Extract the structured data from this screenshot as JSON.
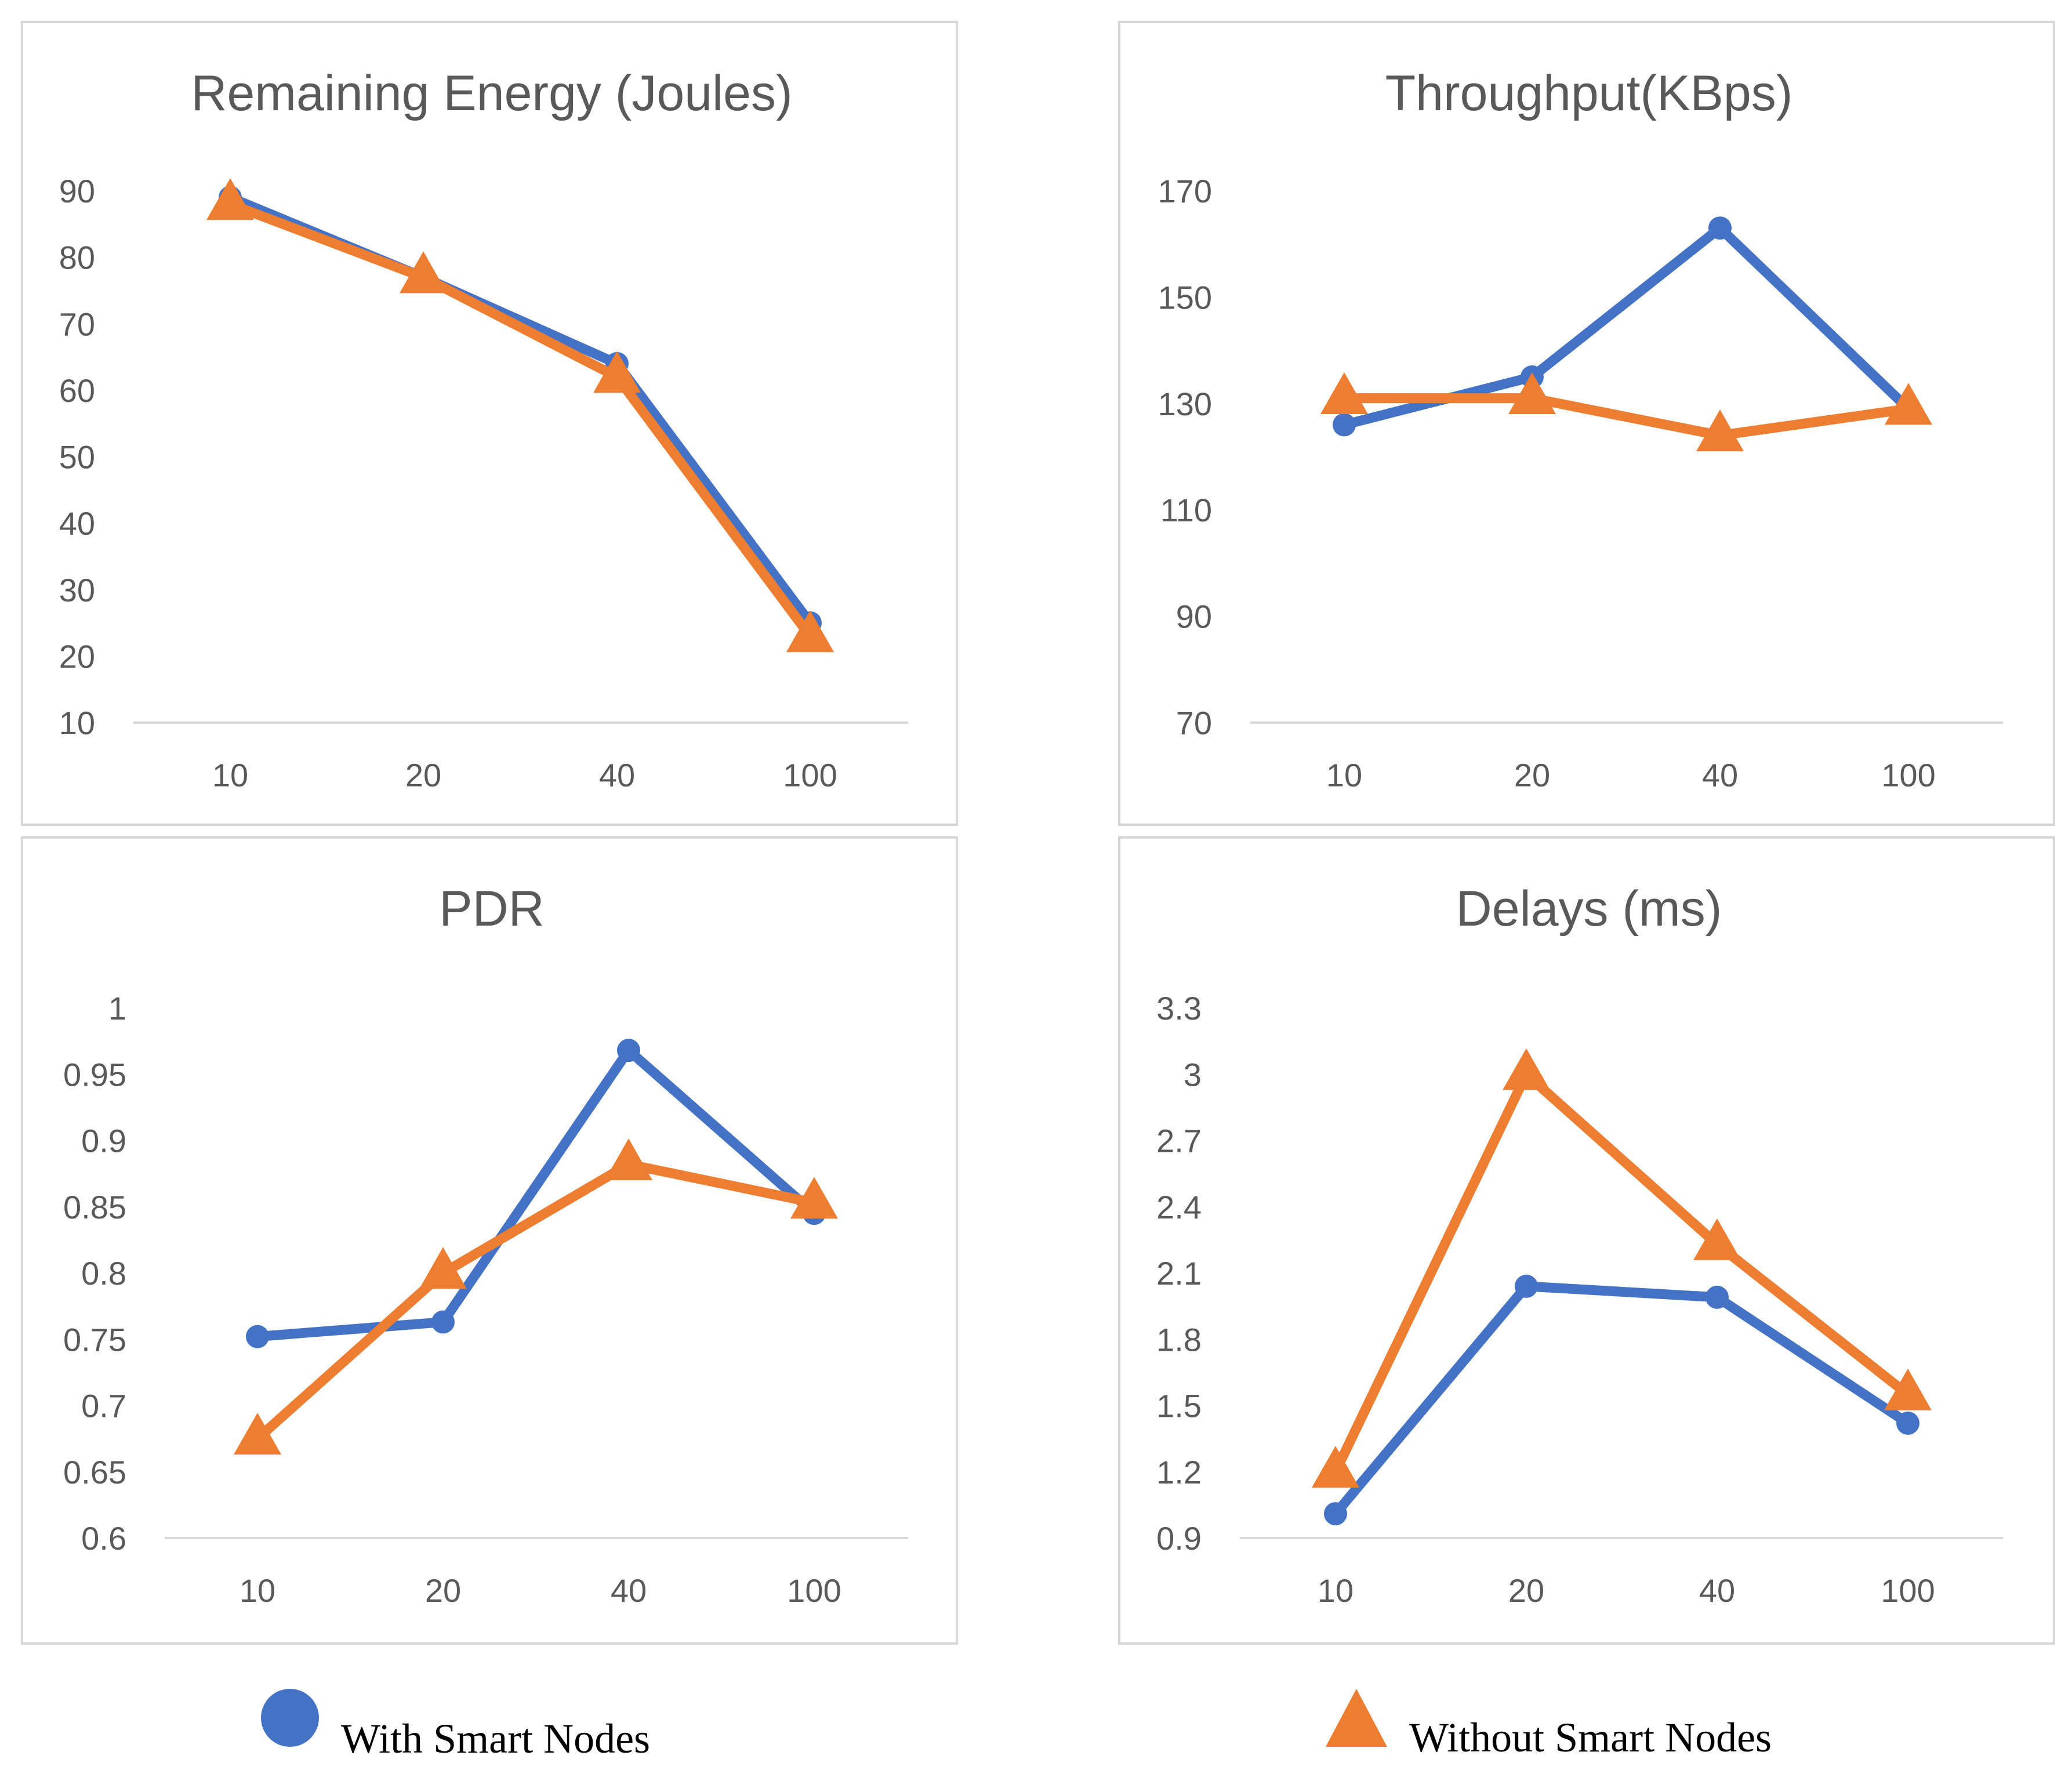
{
  "colors": {
    "with": "#4472C4",
    "without": "#ED7D31",
    "axis": "#d9d9d9",
    "text": "#595959"
  },
  "legend": {
    "with_label": "With Smart Nodes",
    "with_marker": "circle",
    "without_label": "Without Smart Nodes",
    "without_marker": "triangle"
  },
  "chart_data": [
    {
      "type": "line",
      "title": "Remaining Energy (Joules)",
      "categories": [
        "10",
        "20",
        "40",
        "100"
      ],
      "ylim": [
        10,
        90
      ],
      "yticks": [
        "10",
        "20",
        "30",
        "40",
        "50",
        "60",
        "70",
        "80",
        "90"
      ],
      "series": [
        {
          "name": "With Smart Nodes",
          "marker": "circle",
          "values": [
            89,
            77,
            64,
            25
          ]
        },
        {
          "name": "Without Smart Nodes",
          "marker": "triangle",
          "values": [
            88,
            77,
            62,
            23
          ]
        }
      ],
      "grid": false
    },
    {
      "type": "line",
      "title": "Throughput(KBps)",
      "categories": [
        "10",
        "20",
        "40",
        "100"
      ],
      "ylim": [
        70,
        170
      ],
      "yticks": [
        "70",
        "90",
        "110",
        "130",
        "150",
        "170"
      ],
      "series": [
        {
          "name": "With Smart Nodes",
          "marker": "circle",
          "values": [
            126,
            135,
            163,
            129
          ]
        },
        {
          "name": "Without Smart Nodes",
          "marker": "triangle",
          "values": [
            131,
            131,
            124,
            129
          ]
        }
      ],
      "grid": false
    },
    {
      "type": "line",
      "title": "PDR",
      "categories": [
        "10",
        "20",
        "40",
        "100"
      ],
      "ylim": [
        0.6,
        1
      ],
      "yticks": [
        "0.6",
        "0.65",
        "0.7",
        "0.75",
        "0.8",
        "0.85",
        "0.9",
        "0.95",
        "1"
      ],
      "series": [
        {
          "name": "With Smart Nodes",
          "marker": "circle",
          "values": [
            0.752,
            0.763,
            0.968,
            0.845
          ]
        },
        {
          "name": "Without Smart Nodes",
          "marker": "triangle",
          "values": [
            0.675,
            0.8,
            0.882,
            0.853
          ]
        }
      ],
      "grid": false
    },
    {
      "type": "line",
      "title": "Delays (ms)",
      "categories": [
        "10",
        "20",
        "40",
        "100"
      ],
      "ylim": [
        0.9,
        3.3
      ],
      "yticks": [
        "0.9",
        "1.2",
        "1.5",
        "1.8",
        "2.1",
        "2.4",
        "2.7",
        "3",
        "3.3"
      ],
      "series": [
        {
          "name": "With Smart Nodes",
          "marker": "circle",
          "values": [
            1.01,
            2.04,
            1.99,
            1.42
          ]
        },
        {
          "name": "Without Smart Nodes",
          "marker": "triangle",
          "values": [
            1.2,
            3.0,
            2.23,
            1.55
          ]
        }
      ],
      "grid": false
    }
  ]
}
